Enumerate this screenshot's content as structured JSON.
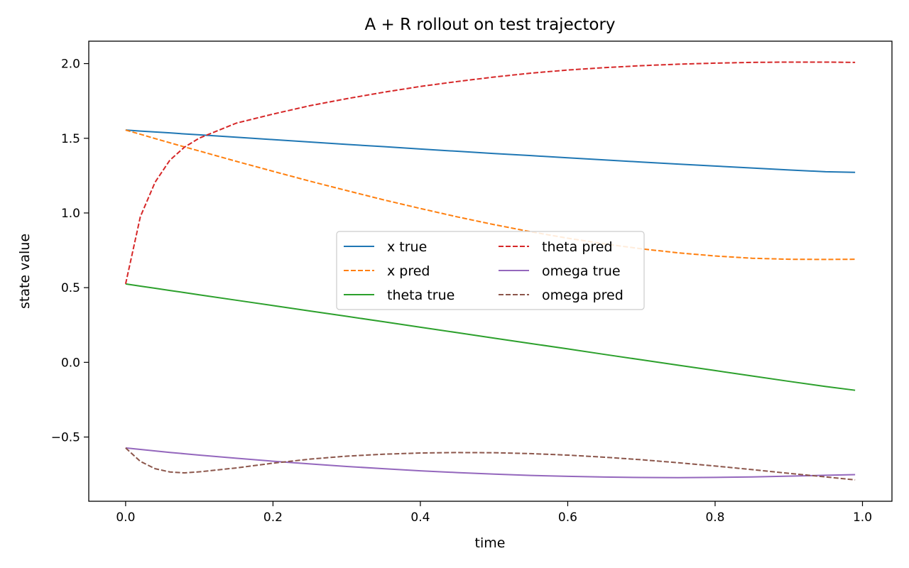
{
  "chart_data": {
    "type": "line",
    "title": "A + R rollout on test trajectory",
    "xlabel": "time",
    "ylabel": "state value",
    "xlim": [
      -0.05,
      1.04
    ],
    "ylim": [
      -0.93,
      2.15
    ],
    "xticks": [
      0.0,
      0.2,
      0.4,
      0.6,
      0.8,
      1.0
    ],
    "xtick_labels": [
      "0.0",
      "0.2",
      "0.4",
      "0.6",
      "0.8",
      "1.0"
    ],
    "yticks": [
      -0.5,
      0.0,
      0.5,
      1.0,
      1.5,
      2.0
    ],
    "ytick_labels": [
      "−0.5",
      "0.0",
      "0.5",
      "1.0",
      "1.5",
      "2.0"
    ],
    "grid": false,
    "legend": {
      "placement": "center",
      "columns": 2
    },
    "x": [
      0.0,
      0.02,
      0.04,
      0.06,
      0.08,
      0.1,
      0.15,
      0.2,
      0.25,
      0.3,
      0.35,
      0.4,
      0.45,
      0.5,
      0.55,
      0.6,
      0.65,
      0.7,
      0.75,
      0.8,
      0.85,
      0.9,
      0.95,
      0.99
    ],
    "series": [
      {
        "name": "x true",
        "color": "#1f77b4",
        "dash": "solid",
        "values": [
          1.555,
          1.548,
          1.542,
          1.536,
          1.529,
          1.523,
          1.507,
          1.491,
          1.475,
          1.459,
          1.444,
          1.428,
          1.413,
          1.398,
          1.384,
          1.369,
          1.355,
          1.341,
          1.327,
          1.314,
          1.301,
          1.288,
          1.276,
          1.272
        ]
      },
      {
        "name": "x pred",
        "color": "#ff7f0e",
        "dash": "dashed",
        "values": [
          1.555,
          1.527,
          1.498,
          1.47,
          1.442,
          1.415,
          1.346,
          1.279,
          1.213,
          1.15,
          1.088,
          1.03,
          0.974,
          0.922,
          0.874,
          0.831,
          0.793,
          0.76,
          0.733,
          0.712,
          0.697,
          0.69,
          0.689,
          0.69
        ]
      },
      {
        "name": "theta true",
        "color": "#2ca02c",
        "dash": "solid",
        "values": [
          0.525,
          0.51,
          0.496,
          0.481,
          0.467,
          0.452,
          0.416,
          0.38,
          0.344,
          0.308,
          0.272,
          0.235,
          0.199,
          0.162,
          0.126,
          0.09,
          0.053,
          0.017,
          -0.019,
          -0.055,
          -0.091,
          -0.127,
          -0.162,
          -0.187
        ]
      },
      {
        "name": "theta pred",
        "color": "#d62728",
        "dash": "dashed",
        "values": [
          0.525,
          0.975,
          1.206,
          1.353,
          1.441,
          1.501,
          1.601,
          1.662,
          1.718,
          1.765,
          1.808,
          1.847,
          1.88,
          1.91,
          1.936,
          1.957,
          1.973,
          1.986,
          1.996,
          2.003,
          2.008,
          2.01,
          2.01,
          2.008
        ]
      },
      {
        "name": "omega true",
        "color": "#9467bd",
        "dash": "solid",
        "values": [
          -0.573,
          -0.583,
          -0.593,
          -0.603,
          -0.612,
          -0.621,
          -0.642,
          -0.662,
          -0.68,
          -0.697,
          -0.712,
          -0.726,
          -0.738,
          -0.748,
          -0.757,
          -0.763,
          -0.768,
          -0.771,
          -0.772,
          -0.77,
          -0.767,
          -0.762,
          -0.756,
          -0.752
        ]
      },
      {
        "name": "omega pred",
        "color": "#8c564b",
        "dash": "dashed",
        "values": [
          -0.573,
          -0.663,
          -0.712,
          -0.734,
          -0.74,
          -0.733,
          -0.707,
          -0.675,
          -0.648,
          -0.628,
          -0.615,
          -0.607,
          -0.604,
          -0.605,
          -0.611,
          -0.621,
          -0.635,
          -0.652,
          -0.672,
          -0.694,
          -0.718,
          -0.743,
          -0.767,
          -0.787
        ]
      }
    ]
  }
}
